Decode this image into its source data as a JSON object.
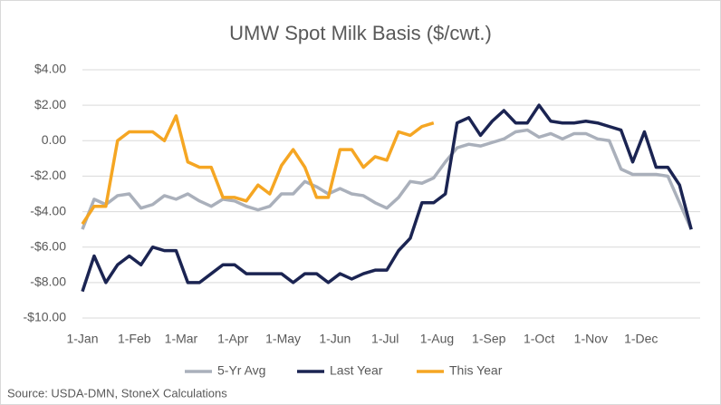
{
  "chart_data": {
    "type": "line",
    "title": "UMW Spot Milk Basis ($/cwt.)",
    "source": "Source: USDA-DMN, StoneX Calculations",
    "x": [
      0,
      7,
      14,
      21,
      28,
      35,
      42,
      49,
      56,
      63,
      70,
      77,
      84,
      91,
      98,
      105,
      112,
      119,
      126,
      133,
      140,
      147,
      154,
      161,
      168,
      175,
      182,
      189,
      196,
      203,
      210,
      217,
      224,
      231,
      238,
      245,
      252,
      259,
      266,
      273,
      280,
      287,
      294,
      301,
      308,
      315,
      322,
      329,
      336,
      343,
      350,
      357,
      364
    ],
    "xlim": [
      0,
      365
    ],
    "xticks": [
      {
        "value": 0,
        "label": "1-Jan"
      },
      {
        "value": 31,
        "label": "1-Feb"
      },
      {
        "value": 59,
        "label": "1-Mar"
      },
      {
        "value": 90,
        "label": "1-Apr"
      },
      {
        "value": 120,
        "label": "1-May"
      },
      {
        "value": 151,
        "label": "1-Jun"
      },
      {
        "value": 181,
        "label": "1-Jul"
      },
      {
        "value": 212,
        "label": "1-Aug"
      },
      {
        "value": 243,
        "label": "1-Sep"
      },
      {
        "value": 273,
        "label": "1-Oct"
      },
      {
        "value": 304,
        "label": "1-Nov"
      },
      {
        "value": 334,
        "label": "1-Dec"
      }
    ],
    "ylim": [
      -10,
      4
    ],
    "yticks": [
      {
        "value": -10,
        "label": "-$10.00"
      },
      {
        "value": -8,
        "label": "-$8.00"
      },
      {
        "value": -6,
        "label": "-$6.00"
      },
      {
        "value": -4,
        "label": "-$4.00"
      },
      {
        "value": -2,
        "label": "-$2.00"
      },
      {
        "value": 0,
        "label": "0.00"
      },
      {
        "value": 2,
        "label": "$2.00"
      },
      {
        "value": 4,
        "label": "$4.00"
      }
    ],
    "grid": true,
    "legend": "bottom",
    "series": [
      {
        "name": "5-Yr Avg",
        "color": "#aab0bb",
        "values": [
          -5.0,
          -3.3,
          -3.6,
          -3.1,
          -3.0,
          -3.8,
          -3.6,
          -3.1,
          -3.3,
          -3.0,
          -3.4,
          -3.7,
          -3.3,
          -3.4,
          -3.7,
          -3.9,
          -3.7,
          -3.0,
          -3.0,
          -2.3,
          -2.6,
          -3.0,
          -2.7,
          -3.0,
          -3.1,
          -3.5,
          -3.8,
          -3.2,
          -2.3,
          -2.4,
          -2.1,
          -1.2,
          -0.4,
          -0.2,
          -0.3,
          -0.1,
          0.1,
          0.5,
          0.6,
          0.2,
          0.4,
          0.1,
          0.4,
          0.4,
          0.1,
          0.0,
          -1.6,
          -1.9,
          -1.9,
          -1.9,
          -2.0,
          -3.5,
          -5.0
        ]
      },
      {
        "name": "Last Year",
        "color": "#1b2452",
        "values": [
          -8.5,
          -6.5,
          -8.0,
          -7.0,
          -6.5,
          -7.0,
          -6.0,
          -6.2,
          -6.2,
          -8.0,
          -8.0,
          -7.5,
          -7.0,
          -7.0,
          -7.5,
          -7.5,
          -7.5,
          -7.5,
          -8.0,
          -7.5,
          -7.5,
          -8.0,
          -7.5,
          -7.8,
          -7.5,
          -7.3,
          -7.3,
          -6.2,
          -5.5,
          -3.5,
          -3.5,
          -3.0,
          1.0,
          1.3,
          0.3,
          1.1,
          1.7,
          1.0,
          1.0,
          2.0,
          1.1,
          1.0,
          1.0,
          1.1,
          1.0,
          0.8,
          0.6,
          -1.2,
          0.5,
          -1.5,
          -1.5,
          -2.5,
          -5.0
        ]
      },
      {
        "name": "This Year",
        "color": "#f5a623",
        "values": [
          -4.7,
          -3.7,
          -3.7,
          0.0,
          0.5,
          0.5,
          0.5,
          0.0,
          1.4,
          -1.2,
          -1.5,
          -1.5,
          -3.2,
          -3.2,
          -3.4,
          -2.5,
          -3.0,
          -1.4,
          -0.5,
          -1.5,
          -3.2,
          -3.2,
          -0.5,
          -0.5,
          -1.5,
          -0.9,
          -1.1,
          0.5,
          0.3,
          0.8,
          1.0,
          null,
          null,
          null,
          null,
          null,
          null,
          null,
          null,
          null,
          null,
          null,
          null,
          null,
          null,
          null,
          null,
          null,
          null,
          null,
          null,
          null,
          null
        ]
      }
    ]
  }
}
